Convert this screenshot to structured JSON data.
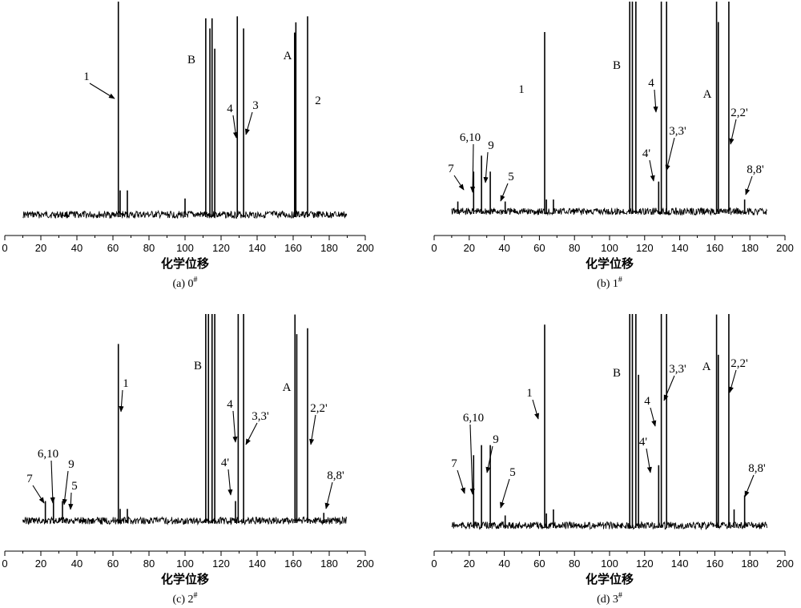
{
  "chart_data": [
    {
      "type": "line",
      "xlabel": "化学位移",
      "caption": "(a) 0#",
      "caption_main": "(a) 0",
      "caption_sup": "#",
      "xlim": [
        0,
        200
      ],
      "xticks": [
        "0",
        "20",
        "40",
        "60",
        "80",
        "100",
        "120",
        "140",
        "160",
        "180",
        "200"
      ],
      "peaks": [
        {
          "x": 63.0,
          "h": 1.1
        },
        {
          "x": 64.0,
          "h": 0.12
        },
        {
          "x": 68.0,
          "h": 0.12
        },
        {
          "x": 100.0,
          "h": 0.08
        },
        {
          "x": 111.5,
          "h": 0.97
        },
        {
          "x": 113.8,
          "h": 0.92
        },
        {
          "x": 115.0,
          "h": 0.97
        },
        {
          "x": 116.5,
          "h": 0.82
        },
        {
          "x": 129.0,
          "h": 0.98
        },
        {
          "x": 132.5,
          "h": 0.92
        },
        {
          "x": 160.8,
          "h": 0.9
        },
        {
          "x": 161.5,
          "h": 0.95
        },
        {
          "x": 168.0,
          "h": 0.98
        }
      ],
      "annotations": [
        {
          "text": "1",
          "x": 63.0
        },
        {
          "text": "B",
          "x": 111.0
        },
        {
          "text": "4",
          "x": 129.0
        },
        {
          "text": "3",
          "x": 132.5
        },
        {
          "text": "A",
          "x": 161.0
        },
        {
          "text": "2",
          "x": 168.0
        }
      ]
    },
    {
      "type": "line",
      "xlabel": "化学位移",
      "caption": "(b) 1#",
      "caption_main": "(b) 1",
      "caption_sup": "#",
      "xlim": [
        0,
        200
      ],
      "xticks": [
        "0",
        "20",
        "40",
        "60",
        "80",
        "100",
        "120",
        "140",
        "160",
        "180",
        "200"
      ],
      "peaks": [
        {
          "x": 13.5,
          "h": 0.05
        },
        {
          "x": 22.5,
          "h": 0.2
        },
        {
          "x": 27.0,
          "h": 0.28
        },
        {
          "x": 32.0,
          "h": 0.2
        },
        {
          "x": 40.5,
          "h": 0.05
        },
        {
          "x": 63.0,
          "h": 0.9
        },
        {
          "x": 64.0,
          "h": 0.06
        },
        {
          "x": 68.0,
          "h": 0.06
        },
        {
          "x": 111.5,
          "h": 1.1
        },
        {
          "x": 113.0,
          "h": 1.1
        },
        {
          "x": 115.0,
          "h": 1.1
        },
        {
          "x": 128.0,
          "h": 0.15
        },
        {
          "x": 129.5,
          "h": 1.1
        },
        {
          "x": 132.5,
          "h": 1.1
        },
        {
          "x": 161.0,
          "h": 1.1
        },
        {
          "x": 162.0,
          "h": 0.95
        },
        {
          "x": 168.0,
          "h": 1.1
        },
        {
          "x": 177.0,
          "h": 0.06
        }
      ],
      "annotations": [
        {
          "text": "7",
          "x": 22.5
        },
        {
          "text": "6,10",
          "x": 27.0
        },
        {
          "text": "9",
          "x": 32.0
        },
        {
          "text": "5",
          "x": 40.5
        },
        {
          "text": "1",
          "x": 63.0
        },
        {
          "text": "B",
          "x": 111.0
        },
        {
          "text": "4'",
          "x": 128.0
        },
        {
          "text": "4",
          "x": 129.5
        },
        {
          "text": "3,3'",
          "x": 132.5
        },
        {
          "text": "A",
          "x": 161.0
        },
        {
          "text": "2,2'",
          "x": 168.0
        },
        {
          "text": "8,8'",
          "x": 177.0
        }
      ]
    },
    {
      "type": "line",
      "xlabel": "化学位移",
      "caption": "(c) 2#",
      "caption_main": "(c) 2",
      "caption_sup": "#",
      "xlim": [
        0,
        200
      ],
      "xticks": [
        "0",
        "20",
        "40",
        "60",
        "80",
        "100",
        "120",
        "140",
        "160",
        "180",
        "200"
      ],
      "peaks": [
        {
          "x": 22.5,
          "h": 0.1
        },
        {
          "x": 27.0,
          "h": 0.12
        },
        {
          "x": 32.0,
          "h": 0.1
        },
        {
          "x": 63.0,
          "h": 0.9
        },
        {
          "x": 64.0,
          "h": 0.06
        },
        {
          "x": 68.0,
          "h": 0.06
        },
        {
          "x": 111.5,
          "h": 1.1
        },
        {
          "x": 113.0,
          "h": 1.1
        },
        {
          "x": 115.0,
          "h": 1.1
        },
        {
          "x": 116.5,
          "h": 1.1
        },
        {
          "x": 128.0,
          "h": 0.1
        },
        {
          "x": 129.5,
          "h": 1.1
        },
        {
          "x": 132.5,
          "h": 1.1
        },
        {
          "x": 161.0,
          "h": 1.05
        },
        {
          "x": 162.0,
          "h": 0.95
        },
        {
          "x": 168.0,
          "h": 0.98
        },
        {
          "x": 177.0,
          "h": 0.04
        }
      ],
      "annotations": [
        {
          "text": "7",
          "x": 22.5
        },
        {
          "text": "6,10",
          "x": 27.0
        },
        {
          "text": "9",
          "x": 32.0
        },
        {
          "text": "5",
          "x": 36.0
        },
        {
          "text": "1",
          "x": 63.0
        },
        {
          "text": "B",
          "x": 111.0
        },
        {
          "text": "4'",
          "x": 128.0
        },
        {
          "text": "4",
          "x": 129.5
        },
        {
          "text": "3,3'",
          "x": 132.5
        },
        {
          "text": "A",
          "x": 161.0
        },
        {
          "text": "2,2'",
          "x": 168.0
        },
        {
          "text": "8,8'",
          "x": 177.0
        }
      ]
    },
    {
      "type": "line",
      "xlabel": "化学位移",
      "caption": "(d) 3#",
      "caption_main": "(d) 3",
      "caption_sup": "#",
      "xlim": [
        0,
        200
      ],
      "xticks": [
        "0",
        "20",
        "40",
        "60",
        "80",
        "100",
        "120",
        "140",
        "160",
        "180",
        "200"
      ],
      "peaks": [
        {
          "x": 22.5,
          "h": 0.35
        },
        {
          "x": 27.0,
          "h": 0.4
        },
        {
          "x": 32.0,
          "h": 0.4
        },
        {
          "x": 40.5,
          "h": 0.05
        },
        {
          "x": 63.0,
          "h": 1.0
        },
        {
          "x": 64.0,
          "h": 0.06
        },
        {
          "x": 68.0,
          "h": 0.08
        },
        {
          "x": 111.5,
          "h": 1.1
        },
        {
          "x": 113.0,
          "h": 1.1
        },
        {
          "x": 115.0,
          "h": 1.1
        },
        {
          "x": 116.5,
          "h": 0.75
        },
        {
          "x": 128.0,
          "h": 0.3
        },
        {
          "x": 129.5,
          "h": 1.1
        },
        {
          "x": 132.5,
          "h": 1.1
        },
        {
          "x": 161.0,
          "h": 1.05
        },
        {
          "x": 162.0,
          "h": 0.85
        },
        {
          "x": 168.0,
          "h": 1.1
        },
        {
          "x": 171.0,
          "h": 0.08
        },
        {
          "x": 177.0,
          "h": 0.15
        }
      ],
      "annotations": [
        {
          "text": "7",
          "x": 22.5
        },
        {
          "text": "6,10",
          "x": 27.0
        },
        {
          "text": "9",
          "x": 32.0
        },
        {
          "text": "5",
          "x": 40.5
        },
        {
          "text": "1",
          "x": 63.0
        },
        {
          "text": "B",
          "x": 111.0
        },
        {
          "text": "4'",
          "x": 128.0
        },
        {
          "text": "4",
          "x": 129.5
        },
        {
          "text": "3,3'",
          "x": 132.5
        },
        {
          "text": "A",
          "x": 161.0
        },
        {
          "text": "2,2'",
          "x": 168.0
        },
        {
          "text": "8,8'",
          "x": 177.0
        }
      ]
    }
  ]
}
